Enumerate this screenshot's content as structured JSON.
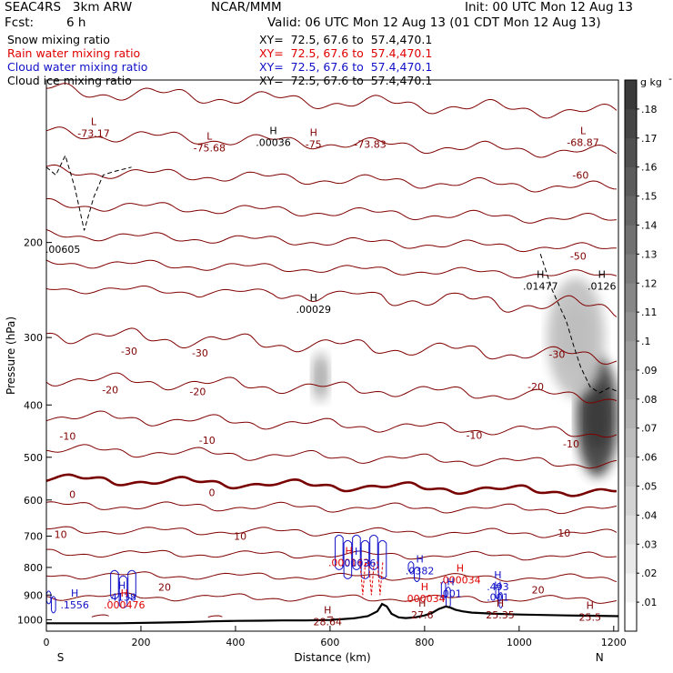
{
  "header": {
    "experiment": "SEAC4RS   3km ARW",
    "center": "NCAR/MMM",
    "init": "Init: 00 UTC Mon 12 Aug 13",
    "fcst_label": "Fcst:",
    "fcst_value": "6 h",
    "valid": "Valid: 06 UTC Mon 12 Aug 13 (01 CDT Mon 12 Aug 13)",
    "fields": [
      {
        "name": "Snow mixing ratio",
        "color": "#000000",
        "xy": "XY=  72.5, 67.6 to  57.4,470.1"
      },
      {
        "name": "Rain water mixing ratio",
        "color": "#e00000",
        "xy": "XY=  72.5, 67.6 to  57.4,470.1"
      },
      {
        "name": "Cloud water mixing ratio",
        "color": "#1010c8",
        "xy": "XY=  72.5, 67.6 to  57.4,470.1"
      },
      {
        "name": "Cloud ice mixing ratio",
        "color": "#000000",
        "xy": "XY=  72.5, 67.6 to  57.4,470.1"
      }
    ]
  },
  "chart_data": {
    "type": "contour-cross-section",
    "xlabel": "Distance (km)",
    "ylabel": "Pressure (hPa)",
    "x_ticks": [
      0,
      200,
      400,
      600,
      800,
      1000,
      1200
    ],
    "y_ticks": [
      200,
      300,
      400,
      500,
      600,
      700,
      800,
      900,
      1000
    ],
    "xlim": [
      0,
      1210
    ],
    "ylim": [
      1050,
      100
    ],
    "y_scale": "log",
    "x_end_labels": {
      "left": "S",
      "right": "N"
    },
    "colorbar": {
      "unit": "g kg",
      "unit_exponent": "-1",
      "ticks": [
        ".01",
        ".02",
        ".03",
        ".04",
        ".05",
        ".06",
        ".07",
        ".08",
        ".09",
        ".1",
        ".11",
        ".12",
        ".13",
        ".14",
        ".15",
        ".16",
        ".17",
        ".18"
      ],
      "min": 0,
      "max": 0.19,
      "low_color": "#ffffff",
      "high_color": "#3a3a3a"
    },
    "temperature_contours": {
      "color": "#800000",
      "zero_color": "#780000",
      "levels": [
        -70,
        -65,
        -60,
        -55,
        -50,
        -45,
        -40,
        -35,
        -30,
        -25,
        -20,
        -15,
        -10,
        -5,
        0,
        5,
        10,
        15,
        20,
        25,
        30
      ],
      "labels": [
        {
          "text": "-60",
          "x": 1130,
          "p": 150
        },
        {
          "text": "-50",
          "x": 1125,
          "p": 212
        },
        {
          "text": "-30",
          "x": 175,
          "p": 318
        },
        {
          "text": "-30",
          "x": 325,
          "p": 320
        },
        {
          "text": "-30",
          "x": 1080,
          "p": 322
        },
        {
          "text": "-20",
          "x": 135,
          "p": 375
        },
        {
          "text": "-20",
          "x": 320,
          "p": 378
        },
        {
          "text": "-20",
          "x": 1035,
          "p": 370
        },
        {
          "text": "-10",
          "x": 45,
          "p": 457
        },
        {
          "text": "-10",
          "x": 340,
          "p": 465
        },
        {
          "text": "-10",
          "x": 905,
          "p": 455
        },
        {
          "text": "-10",
          "x": 1110,
          "p": 472
        },
        {
          "text": "0",
          "x": 55,
          "p": 585
        },
        {
          "text": "0",
          "x": 350,
          "p": 581
        },
        {
          "text": "10",
          "x": 30,
          "p": 695
        },
        {
          "text": "10",
          "x": 410,
          "p": 700
        },
        {
          "text": "10",
          "x": 1095,
          "p": 690
        },
        {
          "text": "20",
          "x": 250,
          "p": 870
        },
        {
          "text": "20",
          "x": 1040,
          "p": 880
        }
      ]
    },
    "extrema": [
      {
        "type": "L",
        "value": "-73.17",
        "x": 100,
        "p": 125,
        "color": "#800000"
      },
      {
        "type": "L",
        "value": "-75.68",
        "x": 345,
        "p": 133,
        "color": "#800000"
      },
      {
        "type": "H",
        "value": "-75",
        "x": 565,
        "p": 131,
        "color": "#800000"
      },
      {
        "type": "",
        "value": "-73.83",
        "x": 685,
        "p": 131,
        "color": "#800000"
      },
      {
        "type": "L",
        "value": "-68.87",
        "x": 1135,
        "p": 130,
        "color": "#800000"
      },
      {
        "type": "H",
        "value": ".00036",
        "x": 480,
        "p": 130,
        "color": "#000000"
      },
      {
        "type": "",
        "value": ".00605",
        "x": 35,
        "p": 205,
        "color": "#000000"
      },
      {
        "type": "H",
        "value": ".00029",
        "x": 565,
        "p": 265,
        "color": "#000000"
      },
      {
        "type": "H",
        "value": ".01477",
        "x": 1045,
        "p": 240,
        "color": "#000000"
      },
      {
        "type": "H",
        "value": ".0126",
        "x": 1175,
        "p": 240,
        "color": "#000000"
      },
      {
        "type": "H",
        "value": ".000162",
        "x": 640,
        "p": 780,
        "color": "#e00000"
      },
      {
        "type": "H",
        "value": ".00036",
        "x": 660,
        "p": 782,
        "color": "#1010c8"
      },
      {
        "type": "H",
        "value": ".0382",
        "x": 790,
        "p": 808,
        "color": "#1010c8"
      },
      {
        "type": "H",
        "value": ".000034",
        "x": 875,
        "p": 840,
        "color": "#e00000"
      },
      {
        "type": "H",
        "value": ".493",
        "x": 955,
        "p": 865,
        "color": "#1010c8"
      },
      {
        "type": "H",
        "value": ".001",
        "x": 855,
        "p": 890,
        "color": "#1010c8"
      },
      {
        "type": "H",
        "value": ".001",
        "x": 955,
        "p": 905,
        "color": "#1010c8"
      },
      {
        "type": "H",
        "value": ".000034",
        "x": 800,
        "p": 910,
        "color": "#e00000"
      },
      {
        "type": "H",
        "value": ".1556",
        "x": 60,
        "p": 935,
        "color": "#1010c8"
      },
      {
        "type": "H",
        "value": ".4138",
        "x": 160,
        "p": 905,
        "color": "#1010c8"
      },
      {
        "type": "H",
        "value": ".000476",
        "x": 165,
        "p": 935,
        "color": "#e00000"
      },
      {
        "type": "H",
        "value": "28.64",
        "x": 595,
        "p": 1005,
        "color": "#800000"
      },
      {
        "type": "H",
        "value": "27.6",
        "x": 795,
        "p": 975,
        "color": "#800000"
      },
      {
        "type": "H",
        "value": "25.35",
        "x": 960,
        "p": 975,
        "color": "#800000"
      },
      {
        "type": "H",
        "value": "25.5",
        "x": 1150,
        "p": 985,
        "color": "#800000"
      }
    ],
    "terrain": {
      "color": "#000000",
      "x": [
        0,
        150,
        250,
        300,
        350,
        400,
        450,
        500,
        550,
        600,
        650,
        680,
        700,
        710,
        720,
        730,
        745,
        760,
        780,
        800,
        815,
        830,
        845,
        855,
        865,
        880,
        900,
        950,
        1000,
        1050,
        1100,
        1150,
        1210
      ],
      "p": [
        1015,
        1015,
        1012,
        1010,
        1007,
        1005,
        1004,
        1003,
        1003,
        1001,
        994,
        985,
        965,
        935,
        945,
        975,
        990,
        993,
        990,
        982,
        972,
        955,
        945,
        950,
        958,
        965,
        970,
        975,
        978,
        980,
        982,
        983,
        985
      ]
    },
    "tropopause": {
      "style": "dashed",
      "color": "#000000",
      "segments": [
        {
          "x": [
            0,
            20,
            40,
            60,
            80,
            100,
            120,
            140,
            180
          ],
          "p": [
            145,
            150,
            138,
            158,
            190,
            165,
            150,
            148,
            145
          ]
        },
        {
          "x": [
            1045,
            1070,
            1100,
            1115,
            1130,
            1150,
            1170,
            1190,
            1210
          ],
          "p": [
            210,
            245,
            280,
            310,
            340,
            370,
            380,
            372,
            378
          ]
        }
      ]
    },
    "cloud_ice_shading": [
      {
        "x_center": 580,
        "p_center": 355,
        "sx": 12,
        "sp": 28,
        "peak": 0.07
      },
      {
        "x_center": 1165,
        "p_center": 420,
        "sx": 28,
        "sp": 85,
        "peak": 0.18
      },
      {
        "x_center": 1120,
        "p_center": 300,
        "sx": 38,
        "sp": 60,
        "peak": 0.06
      }
    ],
    "cloud_water_regions": [
      {
        "x_range": [
          135,
          190
        ],
        "p_range": [
          820,
          940
        ]
      },
      {
        "x_range": [
          610,
          720
        ],
        "p_range": [
          705,
          830
        ]
      },
      {
        "x_range": [
          765,
          790
        ],
        "p_range": [
          790,
          840
        ]
      },
      {
        "x_range": [
          835,
          855
        ],
        "p_range": [
          860,
          940
        ]
      },
      {
        "x_range": [
          950,
          965
        ],
        "p_range": [
          880,
          940
        ]
      },
      {
        "x_range": [
          0,
          20
        ],
        "p_range": [
          895,
          960
        ]
      }
    ],
    "rain_water_regions": [
      {
        "x_range": [
          660,
          715
        ],
        "p_range": [
          780,
          900
        ]
      }
    ]
  }
}
